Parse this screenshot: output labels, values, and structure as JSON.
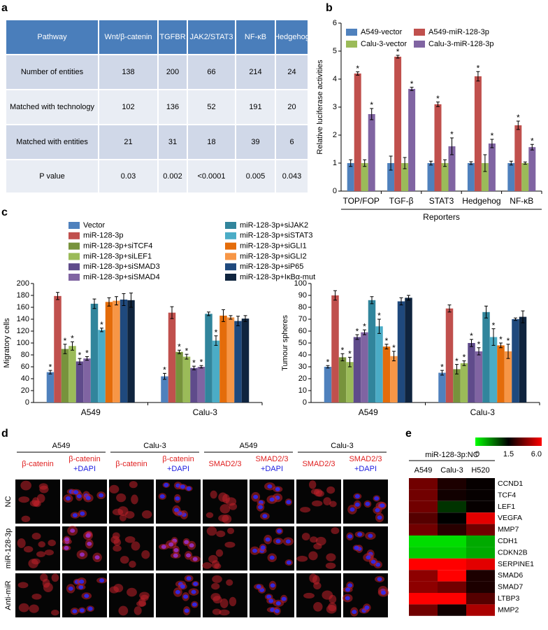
{
  "panel_labels": [
    "a",
    "b",
    "c",
    "d",
    "e"
  ],
  "table": {
    "header": [
      "Pathway",
      "Wnt/β-catenin",
      "TGFBR",
      "JAK2/STAT3",
      "NF-κB",
      "Hedgehog"
    ],
    "rows": [
      [
        "Number of entities",
        "138",
        "200",
        "66",
        "214",
        "24"
      ],
      [
        "Matched with technology",
        "102",
        "136",
        "52",
        "191",
        "20"
      ],
      [
        "Matched with entities",
        "21",
        "31",
        "18",
        "39",
        "6"
      ],
      [
        "P value",
        "0.03",
        "0.002",
        "<0.0001",
        "0.005",
        "0.043"
      ]
    ]
  },
  "chart_data": [
    {
      "type": "bar",
      "categories": [
        "TOP/FOP",
        "TGF-β",
        "STAT3",
        "Hedgehog",
        "NF-κB"
      ],
      "xlabel": "Reporters",
      "ylabel": "Relative luciferase activities",
      "ylim": [
        0,
        6
      ],
      "yticks": [
        0,
        1,
        2,
        3,
        4,
        5,
        6
      ],
      "series": [
        {
          "name": "A549-vector",
          "color": "#4f81bd",
          "values": [
            1,
            1,
            1,
            1,
            1
          ],
          "errors": [
            0.12,
            0.25,
            0.07,
            0.05,
            0.07
          ]
        },
        {
          "name": "A549-miR-128-3p",
          "color": "#c0504d",
          "values": [
            4.2,
            4.8,
            3.1,
            4.1,
            2.35
          ],
          "errors": [
            0.06,
            0.05,
            0.08,
            0.17,
            0.15
          ],
          "annotations": [
            "*",
            "*",
            "*",
            "*",
            "*"
          ]
        },
        {
          "name": "Calu-3-vector",
          "color": "#9bbb59",
          "values": [
            1,
            1,
            1,
            1,
            1
          ],
          "errors": [
            0.12,
            0.2,
            0.12,
            0.3,
            0.04
          ]
        },
        {
          "name": "Calu-3-miR-128-3p",
          "color": "#8064a2",
          "values": [
            2.75,
            3.65,
            1.6,
            1.7,
            1.57
          ],
          "errors": [
            0.2,
            0.06,
            0.3,
            0.15,
            0.1
          ],
          "annotations": [
            "*",
            "*",
            "*",
            "*",
            "*"
          ]
        }
      ]
    },
    {
      "type": "bar",
      "categories": [
        "A549",
        "Calu-3"
      ],
      "ylabel": "Migratory cells",
      "ylim": [
        0,
        200
      ],
      "yticks": [
        0,
        20,
        40,
        60,
        80,
        100,
        120,
        140,
        160,
        180,
        200
      ],
      "series": [
        {
          "name": "Vector",
          "color": "#4f81bd",
          "values": [
            51,
            44
          ],
          "errors": [
            3,
            5
          ],
          "annotations": [
            "*",
            "*"
          ]
        },
        {
          "name": "miR-128-3p",
          "color": "#c0504d",
          "values": [
            179,
            151
          ],
          "errors": [
            6,
            10
          ]
        },
        {
          "name": "miR-128-3p+siTCF4",
          "color": "#77933c",
          "values": [
            90,
            85
          ],
          "errors": [
            8,
            3
          ],
          "annotations": [
            "*",
            "*"
          ]
        },
        {
          "name": "miR-128-3p+siLEF1",
          "color": "#9bbb59",
          "values": [
            95,
            77
          ],
          "errors": [
            7,
            4
          ],
          "annotations": [
            "*",
            "*"
          ]
        },
        {
          "name": "miR-128-3p+siSMAD3",
          "color": "#5f4b8b",
          "values": [
            69,
            58
          ],
          "errors": [
            5,
            3
          ],
          "annotations": [
            "*",
            "*"
          ]
        },
        {
          "name": "miR-128-3p+siSMAD4",
          "color": "#8064a2",
          "values": [
            74,
            60
          ],
          "errors": [
            3,
            2
          ],
          "annotations": [
            "*",
            "*"
          ]
        },
        {
          "name": "miR-128-3p+siJAK2",
          "color": "#31859c",
          "values": [
            166,
            149
          ],
          "errors": [
            8,
            3
          ]
        },
        {
          "name": "miR-128-3p+siSTAT3",
          "color": "#4bacc6",
          "values": [
            122,
            104
          ],
          "errors": [
            3,
            8
          ],
          "annotations": [
            "*",
            "*"
          ]
        },
        {
          "name": "miR-128-3p+siGLI1",
          "color": "#e46c0a",
          "values": [
            169,
            146
          ],
          "errors": [
            7,
            10
          ]
        },
        {
          "name": "miR-128-3p+siGLI2",
          "color": "#f79646",
          "values": [
            171,
            143
          ],
          "errors": [
            7,
            3
          ]
        },
        {
          "name": "miR-128-3p+siP65",
          "color": "#1f497d",
          "values": [
            173,
            137
          ],
          "errors": [
            10,
            8
          ]
        },
        {
          "name": "miR-128-3p+IκBα-mut",
          "color": "#0f243e",
          "values": [
            172,
            141
          ],
          "errors": [
            12,
            5
          ]
        }
      ]
    },
    {
      "type": "bar",
      "categories": [
        "A549",
        "Calu-3"
      ],
      "ylabel": "Tumour spheres",
      "ylim": [
        0,
        100
      ],
      "yticks": [
        0,
        10,
        20,
        30,
        40,
        50,
        60,
        70,
        80,
        90,
        100
      ],
      "series": [
        {
          "color": "#4f81bd",
          "values": [
            30,
            25
          ],
          "errors": [
            1,
            2
          ],
          "annotations": [
            "*",
            "*"
          ]
        },
        {
          "color": "#c0504d",
          "values": [
            90,
            79
          ],
          "errors": [
            4,
            3
          ]
        },
        {
          "color": "#77933c",
          "values": [
            38,
            28
          ],
          "errors": [
            3,
            4
          ],
          "annotations": [
            "*",
            "*"
          ]
        },
        {
          "color": "#9bbb59",
          "values": [
            34,
            33
          ],
          "errors": [
            4,
            2
          ],
          "annotations": [
            "*",
            "*"
          ]
        },
        {
          "color": "#5f4b8b",
          "values": [
            55,
            50
          ],
          "errors": [
            2,
            3
          ],
          "annotations": [
            "*",
            "*"
          ]
        },
        {
          "color": "#8064a2",
          "values": [
            59,
            43
          ],
          "errors": [
            2,
            3
          ],
          "annotations": [
            "*",
            "*"
          ]
        },
        {
          "color": "#31859c",
          "values": [
            86,
            76
          ],
          "errors": [
            3,
            5
          ]
        },
        {
          "color": "#4bacc6",
          "values": [
            64,
            55
          ],
          "errors": [
            6,
            7
          ],
          "annotations": [
            "*",
            "*"
          ]
        },
        {
          "color": "#e46c0a",
          "values": [
            47,
            48
          ],
          "errors": [
            2,
            2
          ],
          "annotations": [
            "*",
            "*"
          ]
        },
        {
          "color": "#f79646",
          "values": [
            39,
            43
          ],
          "errors": [
            4,
            6
          ],
          "annotations": [
            "*",
            "*"
          ]
        },
        {
          "color": "#1f497d",
          "values": [
            85,
            70
          ],
          "errors": [
            3,
            1
          ]
        },
        {
          "color": "#0f243e",
          "values": [
            88,
            72
          ],
          "errors": [
            2,
            5
          ]
        }
      ]
    },
    {
      "type": "heatmap",
      "title": "miR-128-3p:NC",
      "columns": [
        "A549",
        "Calu-3",
        "H520"
      ],
      "rows": [
        "CCND1",
        "TCF4",
        "LEF1",
        "VEGFA",
        "MMP7",
        "CDH1",
        "CDKN2B",
        "SERPINE1",
        "SMAD6",
        "SMAD7",
        "LTBP3",
        "MMP2"
      ],
      "values": [
        [
          3.5,
          2.0,
          1.6
        ],
        [
          3.5,
          1.8,
          1.6
        ],
        [
          3.5,
          1.2,
          1.6
        ],
        [
          3.0,
          1.5,
          5.5
        ],
        [
          3.5,
          2.2,
          3.5
        ],
        [
          0.2,
          0.2,
          0.5
        ],
        [
          0.3,
          0.3,
          0.5
        ],
        [
          6,
          6,
          5.5
        ],
        [
          4,
          6,
          2
        ],
        [
          4,
          3.5,
          2.0
        ],
        [
          6,
          6,
          3
        ],
        [
          3.5,
          1.8,
          4.5
        ]
      ],
      "colorbar": {
        "colors": [
          "#00ff00",
          "#000000",
          "#ff0000"
        ],
        "ticks": [
          0,
          1.5,
          {
            "value": 6,
            "label": "6.0"
          }
        ]
      }
    }
  ],
  "microscopy": {
    "groups": [
      "A549",
      "Calu-3",
      "A549",
      "Calu-3"
    ],
    "columns": [
      [
        "β-catenin"
      ],
      [
        "β-catenin",
        "+DAPI"
      ],
      [
        "β-catenin"
      ],
      [
        "β-catenin",
        "+DAPI"
      ],
      [
        "SMAD2/3"
      ],
      [
        "SMAD2/3",
        "+DAPI"
      ],
      [
        "SMAD2/3"
      ],
      [
        "SMAD2/3",
        "+DAPI"
      ]
    ],
    "rows": [
      "NC",
      "miR-128-3p",
      "Anti-miR"
    ]
  }
}
